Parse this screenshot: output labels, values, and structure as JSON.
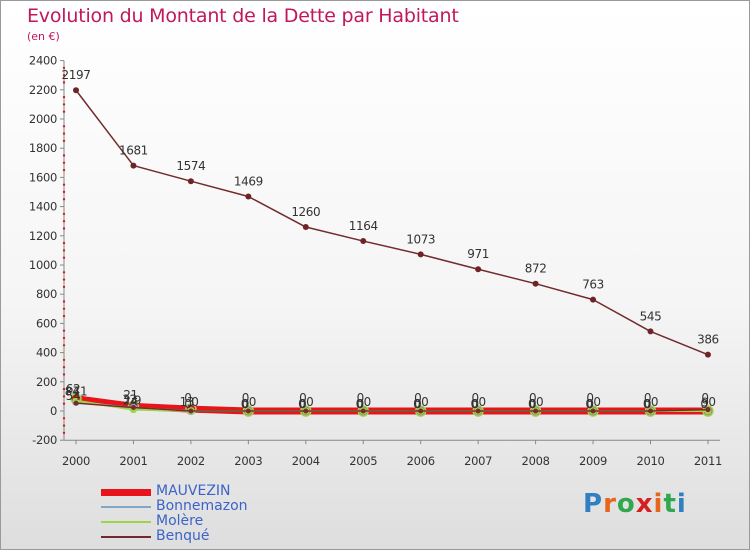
{
  "title": "Evolution du Montant de la Dette par Habitant",
  "subtitle": "(en €)",
  "logo": {
    "text": "Proxiti",
    "colors": [
      "#2f7fc1",
      "#e6661f",
      "#2fa84f",
      "#d62020",
      "#e6661f",
      "#2fa84f",
      "#2f7fc1"
    ]
  },
  "chart_data": {
    "type": "line",
    "title": "Evolution du Montant de la Dette par Habitant",
    "ylabel": "(en €)",
    "xlabel": "",
    "x": [
      "2000",
      "2001",
      "2002",
      "2003",
      "2004",
      "2005",
      "2006",
      "2007",
      "2008",
      "2009",
      "2010",
      "2011"
    ],
    "ylim": [
      -200,
      2400
    ],
    "yticks": [
      "-200",
      "0",
      "200",
      "400",
      "600",
      "800",
      "1000",
      "1200",
      "1400",
      "1600",
      "1800",
      "2000",
      "2200",
      "2400"
    ],
    "grid": false,
    "legend_position": "bottom-left",
    "series": [
      {
        "name": "MAUVEZIN",
        "color": "#e8141b",
        "values": [
          84,
          32,
          13,
          0,
          0,
          0,
          0,
          0,
          0,
          0,
          0,
          0
        ],
        "labels": [
          "84",
          "32",
          "13",
          "0",
          "0",
          "0",
          "0",
          "0",
          "0",
          "0",
          "0",
          "0"
        ]
      },
      {
        "name": "Bonnemazon",
        "color": "#7fa7c8",
        "values": [
          62,
          21,
          0,
          0,
          0,
          0,
          0,
          0,
          0,
          0,
          0,
          0
        ],
        "labels": [
          "62",
          "21",
          "0",
          "0",
          "0",
          "0",
          "0",
          "0",
          "0",
          "0",
          "0",
          "0"
        ]
      },
      {
        "name": "Molère",
        "color": "#9ed44a",
        "values": [
          71,
          9,
          0,
          0,
          0,
          0,
          0,
          0,
          0,
          0,
          0,
          0
        ],
        "labels": [
          "71",
          "9",
          "0",
          "0",
          "0",
          "0",
          "0",
          "0",
          "0",
          "0",
          "0",
          "0"
        ]
      },
      {
        "name": "Benqué",
        "color": "#7a2a2a",
        "values": [
          54,
          24,
          0,
          0,
          0,
          0,
          0,
          0,
          0,
          0,
          0,
          9
        ],
        "labels": [
          "54",
          "24",
          "0",
          "0",
          "0",
          "0",
          "0",
          "0",
          "0",
          "0",
          "0",
          "9"
        ]
      },
      {
        "name": "Benqué",
        "color": "#722b2d",
        "values": [
          2197,
          1681,
          1574,
          1469,
          1260,
          1164,
          1073,
          971,
          872,
          763,
          545,
          386
        ],
        "labels": [
          "2197",
          "1681",
          "1574",
          "1469",
          "1260",
          "1164",
          "1073",
          "971",
          "872",
          "763",
          "545",
          "386"
        ]
      }
    ]
  }
}
